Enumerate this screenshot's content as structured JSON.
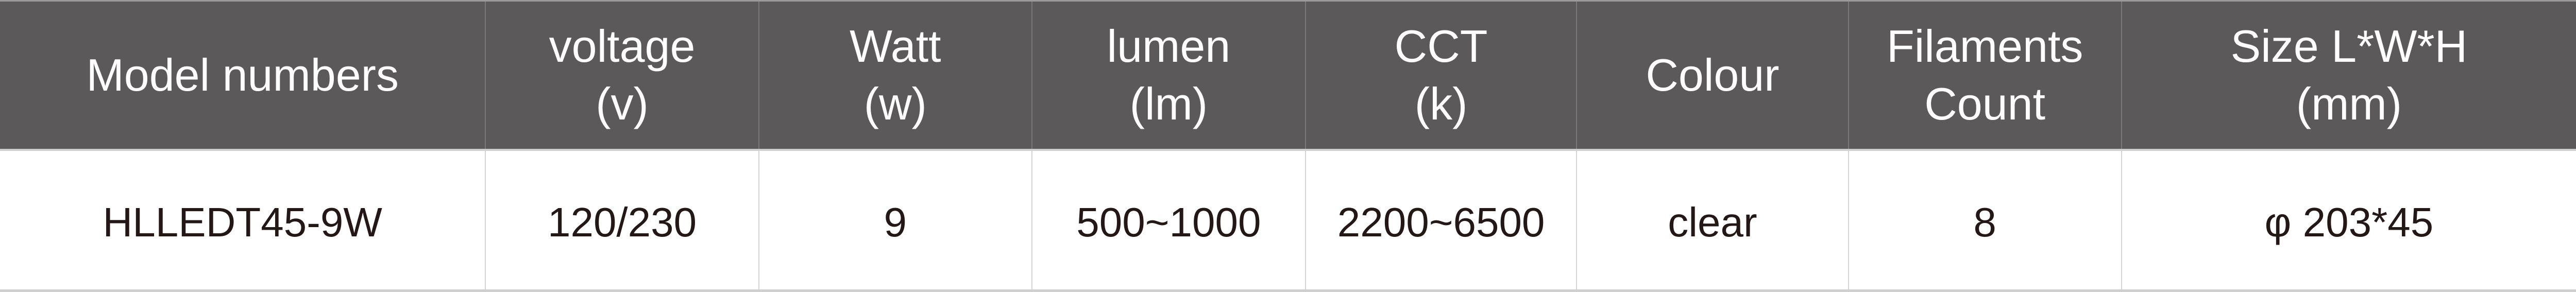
{
  "colors": {
    "header_bg": "#5b595a",
    "header_text": "#ffffff",
    "body_text": "#231815",
    "grid": "#cfcfcf"
  },
  "table": {
    "headers": [
      [
        "Model numbers"
      ],
      [
        "voltage",
        "(v)"
      ],
      [
        "Watt",
        "(w)"
      ],
      [
        "lumen",
        "(lm)"
      ],
      [
        "CCT",
        "(k)"
      ],
      [
        "Colour"
      ],
      [
        "Filaments",
        "Count"
      ],
      [
        "Size L*W*H",
        "(mm)"
      ]
    ],
    "rows": [
      [
        "HLLEDT45-9W",
        "120/230",
        "9",
        "500~1000",
        "2200~6500",
        "clear",
        "8",
        "φ 203*45"
      ]
    ]
  }
}
